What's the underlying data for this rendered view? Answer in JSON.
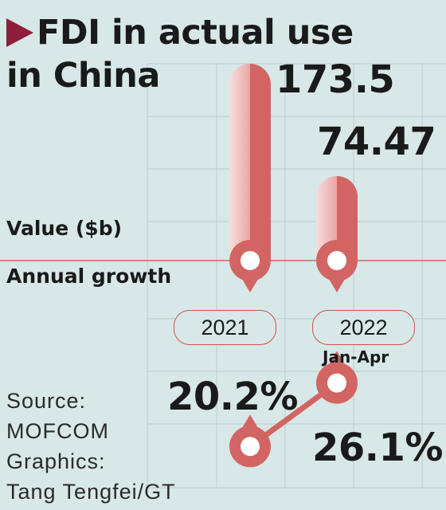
{
  "title_line1": "FDI in actual use",
  "title_line2": "in China",
  "value_label": "Value ($b)",
  "growth_label": "Annual growth",
  "period_sub": "Jan-Apr",
  "source_lines": [
    "Source:",
    "MOFCOM",
    "Graphics:",
    "Tang Tengfei/GT"
  ],
  "colors": {
    "background": "#d8e8e8",
    "bar": "#d26563",
    "bar_light": "#f7dedd",
    "marker": "#8e1f3a",
    "grid": "#bccccc"
  },
  "chart_data": {
    "type": "bar",
    "categories": [
      "2021",
      "2022"
    ],
    "series": [
      {
        "name": "Value ($b)",
        "values": [
          173.5,
          74.47
        ],
        "labels": [
          "173.5",
          "74.47"
        ]
      },
      {
        "name": "Annual growth",
        "values": [
          20.2,
          26.1
        ],
        "labels": [
          "20.2%",
          "26.1%"
        ]
      }
    ],
    "value_unit": "$b",
    "growth_unit": "%"
  }
}
